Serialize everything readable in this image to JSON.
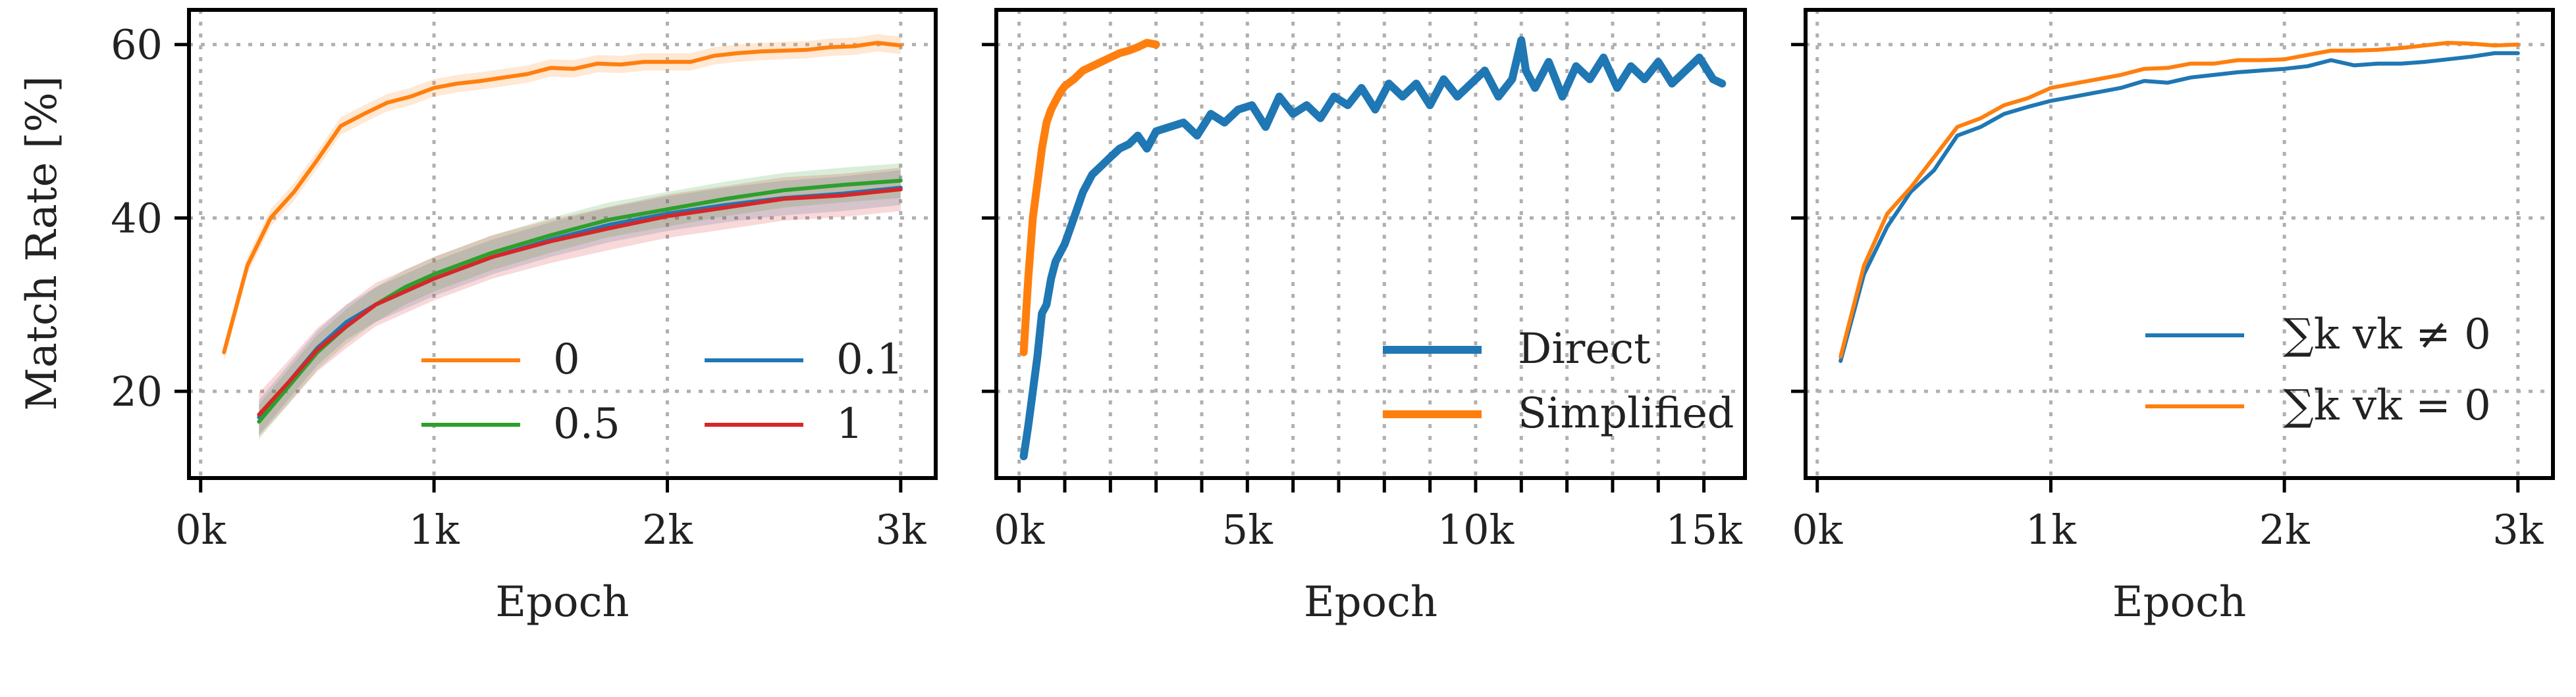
{
  "figure": {
    "ylabel": "Match Rate [%]"
  },
  "colors": {
    "orange": "#ff7f0e",
    "blue": "#1f77b4",
    "green": "#2ca02c",
    "red": "#d62728"
  },
  "chart_data": [
    {
      "type": "line",
      "xlabel": "Epoch",
      "ylabel": "Match Rate [%]",
      "xlim": [
        -50,
        3150
      ],
      "ylim": [
        10,
        64
      ],
      "x_ticks": [
        0,
        1000,
        2000,
        3000
      ],
      "x_tick_labels": [
        "0k",
        "1k",
        "2k",
        "3k"
      ],
      "y_ticks": [
        20,
        40,
        60
      ],
      "y_tick_labels": [
        "20",
        "40",
        "60"
      ],
      "grid": true,
      "legend": {
        "placement": "lower-right",
        "columns": 2,
        "order": [
          "0",
          "0.1",
          "0.5",
          "1"
        ]
      },
      "series": [
        {
          "name": "0",
          "color": "#ff7f0e",
          "band": 1.0,
          "x": [
            100,
            200,
            300,
            400,
            500,
            600,
            700,
            800,
            900,
            1000,
            1100,
            1200,
            1300,
            1400,
            1500,
            1600,
            1700,
            1800,
            1900,
            2000,
            2100,
            2200,
            2300,
            2400,
            2500,
            2600,
            2700,
            2800,
            2900,
            3000
          ],
          "y": [
            24.5,
            34.5,
            40,
            43,
            46.7,
            50.6,
            52,
            53.3,
            54,
            55,
            55.5,
            55.8,
            56.2,
            56.6,
            57.3,
            57.2,
            57.8,
            57.7,
            58,
            58,
            58,
            58.7,
            59,
            59.2,
            59.3,
            59.4,
            59.7,
            59.8,
            60.2,
            59.9
          ]
        },
        {
          "name": "0.1",
          "color": "#1f77b4",
          "band": 2.0,
          "x": [
            250,
            375,
            500,
            625,
            750,
            875,
            1000,
            1250,
            1500,
            1750,
            2000,
            2250,
            2500,
            2750,
            3000
          ],
          "y": [
            17,
            21,
            25,
            28,
            30,
            31.5,
            33,
            35.5,
            37.5,
            39.2,
            40.5,
            41.5,
            42.3,
            42.8,
            43.5
          ]
        },
        {
          "name": "0.5",
          "color": "#2ca02c",
          "band": 2.0,
          "x": [
            250,
            375,
            500,
            625,
            750,
            875,
            1000,
            1250,
            1500,
            1750,
            2000,
            2250,
            2500,
            2750,
            3000
          ],
          "y": [
            16.5,
            20.5,
            24.5,
            27.5,
            30,
            32,
            33.5,
            36,
            38,
            39.8,
            41,
            42.2,
            43.2,
            43.8,
            44.3
          ]
        },
        {
          "name": "1",
          "color": "#d62728",
          "band": 2.5,
          "x": [
            250,
            375,
            500,
            625,
            750,
            875,
            1000,
            1250,
            1500,
            1750,
            2000,
            2250,
            2500,
            2750,
            3000
          ],
          "y": [
            17.3,
            21,
            24.8,
            27.5,
            30,
            31.5,
            33,
            35.5,
            37.3,
            38.8,
            40.2,
            41.2,
            42.2,
            42.6,
            43.3
          ]
        }
      ]
    },
    {
      "type": "line",
      "xlabel": "Epoch",
      "xlim": [
        -500,
        15900
      ],
      "ylim": [
        10,
        64
      ],
      "x_ticks": [
        0,
        5000,
        10000,
        15000
      ],
      "x_tick_labels": [
        "0k",
        "5k",
        "10k",
        "15k"
      ],
      "x_minor_ticks": [
        1000,
        2000,
        3000,
        4000,
        6000,
        7000,
        8000,
        9000,
        11000,
        12000,
        13000,
        14000
      ],
      "y_ticks": [
        20,
        40,
        60
      ],
      "grid": true,
      "legend": {
        "placement": "lower-right",
        "order": [
          "Direct",
          "Simplified"
        ]
      },
      "series": [
        {
          "name": "Direct",
          "color": "#1f77b4",
          "x": [
            100,
            200,
            300,
            400,
            500,
            600,
            700,
            800,
            900,
            1000,
            1200,
            1400,
            1600,
            1800,
            2000,
            2200,
            2400,
            2600,
            2800,
            3000,
            3300,
            3600,
            3900,
            4200,
            4500,
            4800,
            5100,
            5400,
            5700,
            6000,
            6300,
            6600,
            6900,
            7200,
            7500,
            7800,
            8100,
            8400,
            8700,
            9000,
            9300,
            9600,
            9900,
            10200,
            10500,
            10800,
            11000,
            11100,
            11300,
            11600,
            11900,
            12200,
            12500,
            12800,
            13100,
            13400,
            13700,
            14000,
            14300,
            14600,
            14900,
            15200,
            15400
          ],
          "y": [
            12.5,
            16,
            20,
            24,
            29,
            30,
            33,
            35,
            36,
            37,
            40,
            43,
            45,
            46,
            47,
            48,
            48.5,
            49.5,
            48,
            50,
            50.5,
            51,
            49.5,
            52,
            51,
            52.5,
            53,
            50.5,
            54,
            52,
            53,
            51.5,
            54,
            53,
            55,
            52.5,
            55.5,
            54,
            55.5,
            53,
            56,
            54,
            55.5,
            57,
            54,
            56,
            60.5,
            57,
            55,
            58,
            54,
            57.5,
            56,
            58.5,
            55,
            57.5,
            56,
            58,
            55.5,
            57,
            58.5,
            56,
            55.5
          ]
        },
        {
          "name": "Simplified",
          "color": "#ff7f0e",
          "x": [
            100,
            200,
            300,
            400,
            500,
            600,
            700,
            800,
            900,
            1000,
            1200,
            1400,
            1600,
            1800,
            2000,
            2200,
            2400,
            2600,
            2800,
            3000
          ],
          "y": [
            24.5,
            33,
            40,
            44,
            48,
            51,
            52.5,
            53.5,
            54.5,
            55.2,
            56,
            57,
            57.5,
            58,
            58.5,
            59,
            59.3,
            59.7,
            60.2,
            60
          ]
        }
      ]
    },
    {
      "type": "line",
      "xlabel": "Epoch",
      "xlim": [
        -50,
        3150
      ],
      "ylim": [
        10,
        64
      ],
      "x_ticks": [
        0,
        1000,
        2000,
        3000
      ],
      "x_tick_labels": [
        "0k",
        "1k",
        "2k",
        "3k"
      ],
      "y_ticks": [
        20,
        40,
        60
      ],
      "grid": true,
      "legend": {
        "placement": "lower-right",
        "order": [
          "∑k vk ≠ 0",
          "∑k vk = 0"
        ]
      },
      "series": [
        {
          "name": "∑k vk ≠ 0",
          "color": "#1f77b4",
          "x": [
            100,
            200,
            300,
            400,
            500,
            600,
            700,
            800,
            900,
            1000,
            1100,
            1200,
            1300,
            1400,
            1500,
            1600,
            1700,
            1800,
            1900,
            2000,
            2100,
            2200,
            2300,
            2400,
            2500,
            2600,
            2700,
            2800,
            2900,
            3000
          ],
          "y": [
            23.5,
            33.5,
            39,
            43,
            45.5,
            49.5,
            50.5,
            52,
            52.8,
            53.5,
            54,
            54.5,
            55,
            55.8,
            55.6,
            56.2,
            56.5,
            56.8,
            57,
            57.2,
            57.5,
            58.2,
            57.6,
            57.8,
            57.8,
            58,
            58.3,
            58.6,
            59,
            59
          ]
        },
        {
          "name": "∑k vk = 0",
          "color": "#ff7f0e",
          "x": [
            100,
            200,
            300,
            400,
            500,
            600,
            700,
            800,
            900,
            1000,
            1100,
            1200,
            1300,
            1400,
            1500,
            1600,
            1700,
            1800,
            1900,
            2000,
            2100,
            2200,
            2300,
            2400,
            2500,
            2600,
            2700,
            2800,
            2900,
            3000
          ],
          "y": [
            24,
            34.5,
            40.5,
            43.5,
            47,
            50.5,
            51.5,
            53,
            53.8,
            55,
            55.5,
            56,
            56.5,
            57.2,
            57.3,
            57.8,
            57.8,
            58.2,
            58.2,
            58.3,
            58.8,
            59.3,
            59.3,
            59.4,
            59.6,
            59.9,
            60.2,
            60.1,
            59.9,
            60
          ]
        }
      ]
    }
  ]
}
